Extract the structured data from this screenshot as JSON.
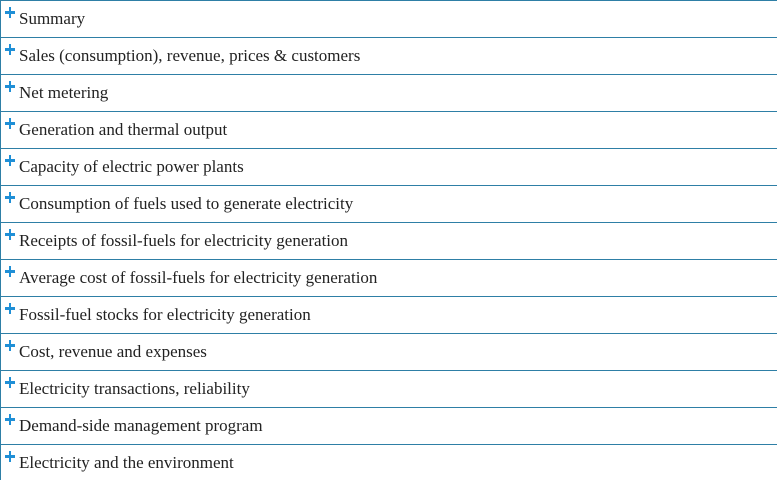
{
  "accordion": {
    "items": [
      {
        "label": "Summary"
      },
      {
        "label": "Sales (consumption), revenue, prices & customers"
      },
      {
        "label": "Net metering"
      },
      {
        "label": "Generation and thermal output"
      },
      {
        "label": "Capacity of electric power plants"
      },
      {
        "label": "Consumption of fuels used to generate electricity"
      },
      {
        "label": "Receipts of fossil-fuels for electricity generation"
      },
      {
        "label": "Average cost of fossil-fuels for electricity generation"
      },
      {
        "label": "Fossil-fuel stocks for electricity generation"
      },
      {
        "label": "Cost, revenue and expenses"
      },
      {
        "label": "Electricity transactions, reliability"
      },
      {
        "label": "Demand-side management program"
      },
      {
        "label": "Electricity and the environment"
      }
    ],
    "icon": "plus-icon",
    "colors": {
      "accent": "#1f8fd6",
      "border": "#2e7fa6",
      "text": "#222222"
    }
  }
}
